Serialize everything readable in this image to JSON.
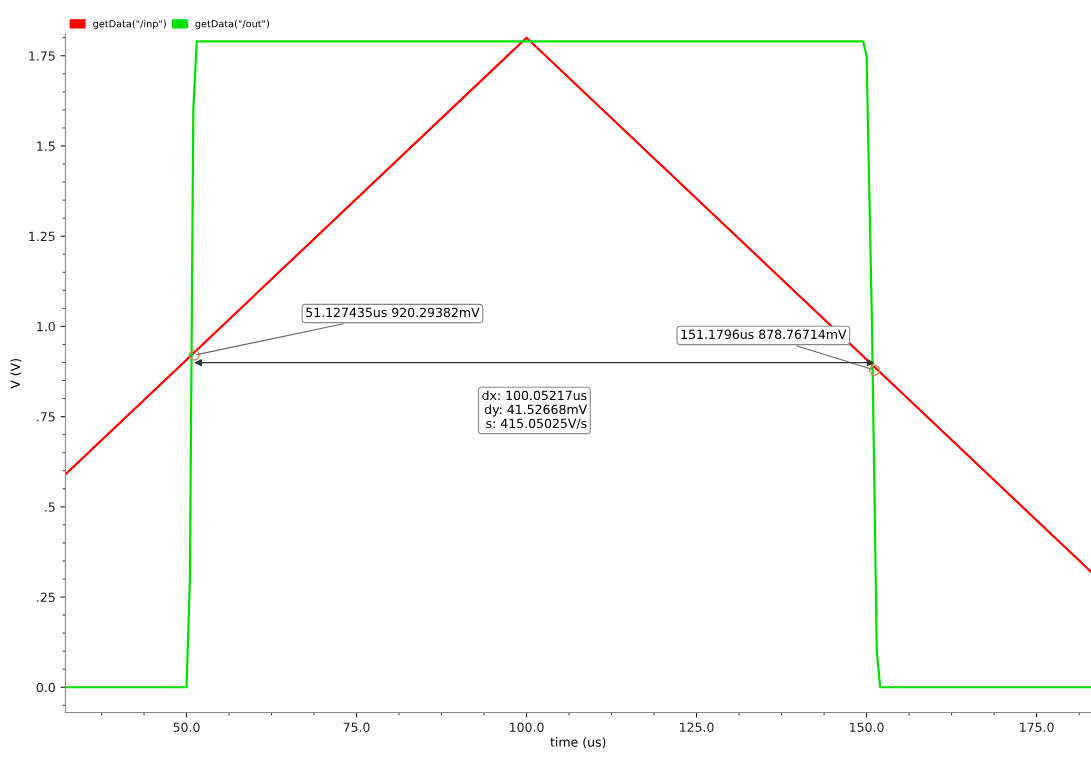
{
  "chart_data": {
    "type": "line",
    "xlabel": "time (us)",
    "ylabel": "V (V)",
    "xlim": [
      32.2,
      183
    ],
    "xticks": [
      {
        "value": 50,
        "label": "50.0"
      },
      {
        "value": 75,
        "label": "75.0"
      },
      {
        "value": 100,
        "label": "100.0"
      },
      {
        "value": 125,
        "label": "125.0"
      },
      {
        "value": 150,
        "label": "150.0"
      },
      {
        "value": 175,
        "label": "175.0"
      }
    ],
    "ylim": [
      -0.07,
      1.81
    ],
    "yticks": [
      {
        "value": 0,
        "label": "0.0"
      },
      {
        "value": 0.25,
        "label": ".25"
      },
      {
        "value": 0.5,
        "label": ".5"
      },
      {
        "value": 0.75,
        "label": ".75"
      },
      {
        "value": 1.0,
        "label": "1.0"
      },
      {
        "value": 1.25,
        "label": "1.25"
      },
      {
        "value": 1.5,
        "label": "1.5"
      },
      {
        "value": 1.75,
        "label": "1.75"
      }
    ],
    "grid": false,
    "legend": "top left",
    "series": [
      {
        "name": "getData(\"/inp\")",
        "color": "#ff0000",
        "x": [
          32.2,
          100,
          183
        ],
        "values": [
          0.59,
          1.8,
          0.32
        ]
      },
      {
        "name": "getData(\"/out\")",
        "color": "#00e000",
        "x": [
          32.2,
          50,
          50.5,
          51,
          51.5,
          149.5,
          150,
          150.8,
          151.5,
          152,
          183
        ],
        "values": [
          0,
          0,
          0.3,
          1.6,
          1.79,
          1.79,
          1.75,
          1.0,
          0.1,
          0,
          0
        ]
      }
    ],
    "annotations": [
      {
        "text": "51.127435us 920.29382mV",
        "x": 51.127435,
        "y": 0.92029382
      },
      {
        "text": "151.1796us 878.76714mV",
        "x": 151.1796,
        "y": 0.87876714
      },
      "dx: 100.05217us\ndy: 41.52668mV\ns: 415.05025V/s"
    ]
  }
}
